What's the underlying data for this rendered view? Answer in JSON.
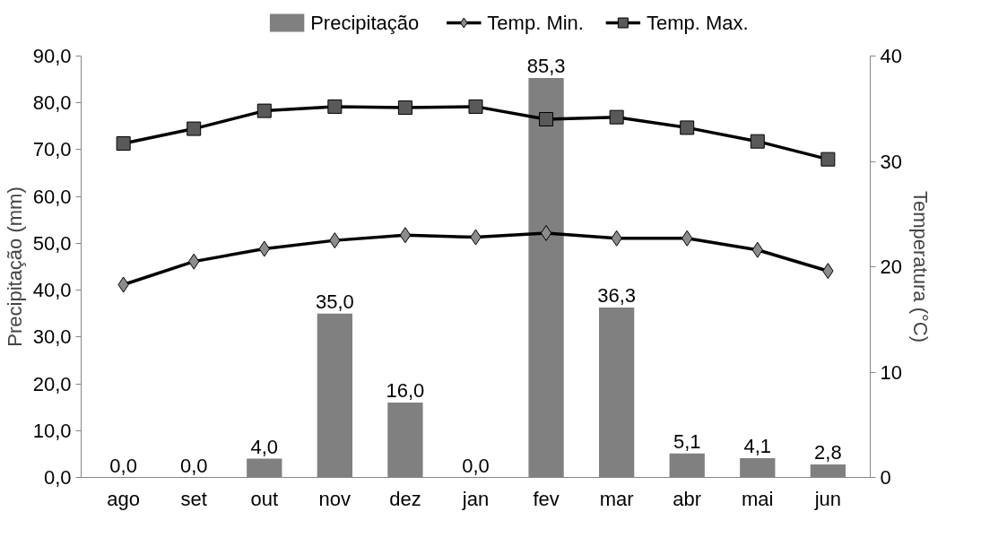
{
  "chart_data": {
    "type": "bar",
    "xlabel": null,
    "ylabel": "Precipitação (mm)",
    "y2label": "Temperatura (°C)",
    "categories": [
      "ago",
      "set",
      "out",
      "nov",
      "dez",
      "jan",
      "fev",
      "mar",
      "abr",
      "mai",
      "jun"
    ],
    "series": [
      {
        "name": "Precipitação",
        "color": "#808080",
        "values": [
          0.0,
          0.0,
          4.0,
          35.0,
          16.0,
          0.0,
          85.3,
          36.3,
          5.1,
          4.1,
          2.8
        ],
        "value_labels": [
          "0,0",
          "0,0",
          "4,0",
          "35,0",
          "16,0",
          "0,0",
          "85,3",
          "36,3",
          "5,1",
          "4,1",
          "2,8"
        ]
      },
      {
        "name": "Temp. Min.",
        "type": "line",
        "axis": "y2",
        "marker": "diamond",
        "color": "#8c8c8c",
        "values": [
          18.3,
          20.5,
          21.7,
          22.5,
          23.0,
          22.8,
          23.2,
          22.7,
          22.7,
          21.6,
          19.6
        ]
      },
      {
        "name": "Temp. Max.",
        "type": "line",
        "axis": "y2",
        "marker": "square",
        "color": "#595959",
        "values": [
          31.7,
          33.1,
          34.8,
          35.2,
          35.1,
          35.2,
          34.0,
          34.2,
          33.2,
          31.9,
          30.2
        ]
      }
    ],
    "ylim": [
      0,
      90
    ],
    "yticks": [
      {
        "value": 0,
        "label": "0,0"
      },
      {
        "value": 10,
        "label": "10,0"
      },
      {
        "value": 20,
        "label": "20,0"
      },
      {
        "value": 30,
        "label": "30,0"
      },
      {
        "value": 40,
        "label": "40,0"
      },
      {
        "value": 50,
        "label": "50,0"
      },
      {
        "value": 60,
        "label": "60,0"
      },
      {
        "value": 70,
        "label": "70,0"
      },
      {
        "value": 80,
        "label": "80,0"
      },
      {
        "value": 90,
        "label": "90,0"
      }
    ],
    "y2lim": [
      0,
      40
    ],
    "y2ticks": [
      0,
      10,
      20,
      30,
      40
    ],
    "grid": false,
    "legend": "top",
    "line_style": "solid"
  }
}
